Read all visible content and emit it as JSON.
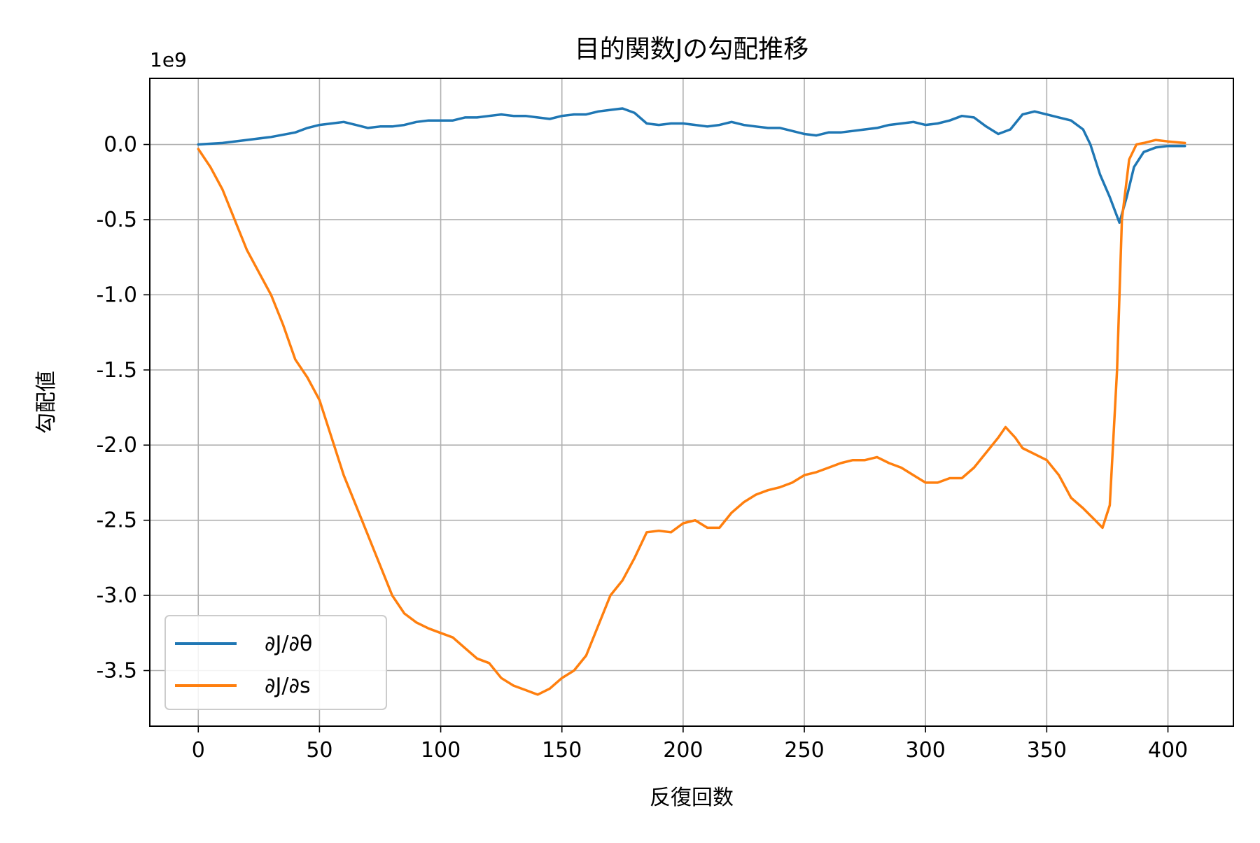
{
  "chart_data": {
    "type": "line",
    "title": "目的関数Jの勾配推移",
    "xlabel": "反復回数",
    "ylabel": "勾配値",
    "offset_label": "1e9",
    "xlim": [
      -20,
      427
    ],
    "ylim": [
      -3.87,
      0.44
    ],
    "xticks": [
      0,
      50,
      100,
      150,
      200,
      250,
      300,
      350,
      400
    ],
    "yticks": [
      0.0,
      -0.5,
      -1.0,
      -1.5,
      -2.0,
      -2.5,
      -3.0,
      -3.5
    ],
    "xtick_labels": [
      "0",
      "50",
      "100",
      "150",
      "200",
      "250",
      "300",
      "350",
      "400"
    ],
    "ytick_labels": [
      "0.0",
      "-0.5",
      "-1.0",
      "-1.5",
      "-2.0",
      "-2.5",
      "-3.0",
      "-3.5"
    ],
    "grid": true,
    "legend_position": "lower-left",
    "series": [
      {
        "name": "∂J/∂θ",
        "color": "#1f77b4",
        "points": [
          [
            0,
            0.0
          ],
          [
            10,
            0.01
          ],
          [
            20,
            0.03
          ],
          [
            30,
            0.05
          ],
          [
            40,
            0.08
          ],
          [
            45,
            0.11
          ],
          [
            50,
            0.13
          ],
          [
            55,
            0.14
          ],
          [
            60,
            0.15
          ],
          [
            65,
            0.13
          ],
          [
            70,
            0.11
          ],
          [
            75,
            0.12
          ],
          [
            80,
            0.12
          ],
          [
            85,
            0.13
          ],
          [
            90,
            0.15
          ],
          [
            95,
            0.16
          ],
          [
            100,
            0.16
          ],
          [
            105,
            0.16
          ],
          [
            110,
            0.18
          ],
          [
            115,
            0.18
          ],
          [
            120,
            0.19
          ],
          [
            125,
            0.2
          ],
          [
            130,
            0.19
          ],
          [
            135,
            0.19
          ],
          [
            140,
            0.18
          ],
          [
            145,
            0.17
          ],
          [
            150,
            0.19
          ],
          [
            155,
            0.2
          ],
          [
            160,
            0.2
          ],
          [
            165,
            0.22
          ],
          [
            170,
            0.23
          ],
          [
            175,
            0.24
          ],
          [
            180,
            0.21
          ],
          [
            185,
            0.14
          ],
          [
            190,
            0.13
          ],
          [
            195,
            0.14
          ],
          [
            200,
            0.14
          ],
          [
            205,
            0.13
          ],
          [
            210,
            0.12
          ],
          [
            215,
            0.13
          ],
          [
            220,
            0.15
          ],
          [
            225,
            0.13
          ],
          [
            230,
            0.12
          ],
          [
            235,
            0.11
          ],
          [
            240,
            0.11
          ],
          [
            245,
            0.09
          ],
          [
            250,
            0.07
          ],
          [
            255,
            0.06
          ],
          [
            260,
            0.08
          ],
          [
            265,
            0.08
          ],
          [
            270,
            0.09
          ],
          [
            275,
            0.1
          ],
          [
            280,
            0.11
          ],
          [
            285,
            0.13
          ],
          [
            290,
            0.14
          ],
          [
            295,
            0.15
          ],
          [
            300,
            0.13
          ],
          [
            305,
            0.14
          ],
          [
            310,
            0.16
          ],
          [
            315,
            0.19
          ],
          [
            320,
            0.18
          ],
          [
            325,
            0.12
          ],
          [
            330,
            0.07
          ],
          [
            335,
            0.1
          ],
          [
            340,
            0.2
          ],
          [
            345,
            0.22
          ],
          [
            350,
            0.2
          ],
          [
            355,
            0.18
          ],
          [
            360,
            0.16
          ],
          [
            365,
            0.1
          ],
          [
            368,
            0.0
          ],
          [
            372,
            -0.2
          ],
          [
            376,
            -0.35
          ],
          [
            380,
            -0.52
          ],
          [
            383,
            -0.35
          ],
          [
            386,
            -0.15
          ],
          [
            390,
            -0.05
          ],
          [
            395,
            -0.02
          ],
          [
            400,
            -0.01
          ],
          [
            407,
            -0.01
          ]
        ]
      },
      {
        "name": "∂J/∂s",
        "color": "#ff7f0e",
        "points": [
          [
            0,
            -0.03
          ],
          [
            5,
            -0.15
          ],
          [
            10,
            -0.3
          ],
          [
            15,
            -0.5
          ],
          [
            20,
            -0.7
          ],
          [
            25,
            -0.85
          ],
          [
            30,
            -1.0
          ],
          [
            35,
            -1.2
          ],
          [
            40,
            -1.43
          ],
          [
            45,
            -1.55
          ],
          [
            50,
            -1.7
          ],
          [
            55,
            -1.95
          ],
          [
            60,
            -2.2
          ],
          [
            65,
            -2.4
          ],
          [
            70,
            -2.6
          ],
          [
            75,
            -2.8
          ],
          [
            80,
            -3.0
          ],
          [
            85,
            -3.12
          ],
          [
            90,
            -3.18
          ],
          [
            95,
            -3.22
          ],
          [
            100,
            -3.25
          ],
          [
            105,
            -3.28
          ],
          [
            110,
            -3.35
          ],
          [
            115,
            -3.42
          ],
          [
            120,
            -3.45
          ],
          [
            125,
            -3.55
          ],
          [
            130,
            -3.6
          ],
          [
            135,
            -3.63
          ],
          [
            140,
            -3.66
          ],
          [
            145,
            -3.62
          ],
          [
            150,
            -3.55
          ],
          [
            155,
            -3.5
          ],
          [
            160,
            -3.4
          ],
          [
            165,
            -3.2
          ],
          [
            170,
            -3.0
          ],
          [
            175,
            -2.9
          ],
          [
            180,
            -2.75
          ],
          [
            185,
            -2.58
          ],
          [
            190,
            -2.57
          ],
          [
            195,
            -2.58
          ],
          [
            200,
            -2.52
          ],
          [
            205,
            -2.5
          ],
          [
            210,
            -2.55
          ],
          [
            215,
            -2.55
          ],
          [
            220,
            -2.45
          ],
          [
            225,
            -2.38
          ],
          [
            230,
            -2.33
          ],
          [
            235,
            -2.3
          ],
          [
            240,
            -2.28
          ],
          [
            245,
            -2.25
          ],
          [
            250,
            -2.2
          ],
          [
            255,
            -2.18
          ],
          [
            260,
            -2.15
          ],
          [
            265,
            -2.12
          ],
          [
            270,
            -2.1
          ],
          [
            275,
            -2.1
          ],
          [
            280,
            -2.08
          ],
          [
            285,
            -2.12
          ],
          [
            290,
            -2.15
          ],
          [
            295,
            -2.2
          ],
          [
            300,
            -2.25
          ],
          [
            305,
            -2.25
          ],
          [
            310,
            -2.22
          ],
          [
            315,
            -2.22
          ],
          [
            320,
            -2.15
          ],
          [
            325,
            -2.05
          ],
          [
            330,
            -1.95
          ],
          [
            333,
            -1.88
          ],
          [
            337,
            -1.95
          ],
          [
            340,
            -2.02
          ],
          [
            345,
            -2.06
          ],
          [
            350,
            -2.1
          ],
          [
            355,
            -2.2
          ],
          [
            360,
            -2.35
          ],
          [
            365,
            -2.42
          ],
          [
            370,
            -2.5
          ],
          [
            373,
            -2.55
          ],
          [
            376,
            -2.4
          ],
          [
            379,
            -1.5
          ],
          [
            381,
            -0.5
          ],
          [
            384,
            -0.1
          ],
          [
            387,
            0.0
          ],
          [
            390,
            0.01
          ],
          [
            395,
            0.03
          ],
          [
            400,
            0.02
          ],
          [
            407,
            0.01
          ]
        ]
      }
    ]
  }
}
